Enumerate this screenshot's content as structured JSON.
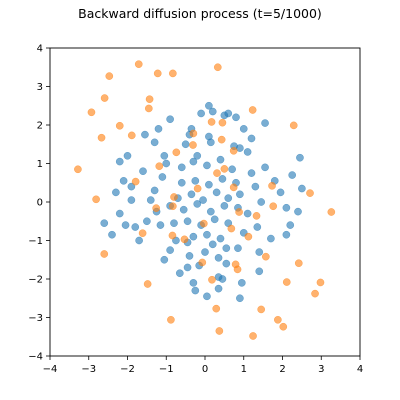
{
  "chart_data": {
    "type": "scatter",
    "title": "Backward diffusion process (t=5/1000)",
    "xlabel": "",
    "ylabel": "",
    "xlim": [
      -4,
      4
    ],
    "ylim": [
      -4,
      4
    ],
    "xticks": [
      "−4",
      "−3",
      "−2",
      "−1",
      "0",
      "1",
      "2",
      "3",
      "4"
    ],
    "yticks": [
      "−4",
      "−3",
      "−2",
      "−1",
      "0",
      "1",
      "2",
      "3",
      "4"
    ],
    "grid": false,
    "legend": "none",
    "point_alpha": 0.6,
    "series": [
      {
        "color": "#1f77b4",
        "x": [
          -0.7,
          -0.35,
          -0.05,
          0.3,
          0.6,
          0.9,
          -0.9,
          -0.55,
          -0.2,
          0.15,
          0.5,
          0.85,
          -0.6,
          -0.25,
          0.1,
          0.45,
          0.8,
          -0.8,
          -0.45,
          -0.1,
          0.25,
          0.6,
          -0.3,
          0.05,
          0.4,
          -1.3,
          -1.1,
          -1.25,
          -1.15,
          -1.4,
          -1.0,
          1.3,
          1.1,
          1.2,
          1.45,
          1.0,
          1.35,
          -0.6,
          -0.3,
          0.05,
          0.4,
          0.7,
          -0.45,
          0.2,
          0.55,
          0.0,
          -0.2,
          -0.4,
          -0.75,
          0.75,
          0.35,
          -1.05,
          -0.5,
          0.1,
          1.1,
          0.55,
          -0.15,
          -0.9,
          0.85,
          -0.45,
          -1.6,
          -1.9,
          -2.2,
          -1.5,
          -1.7,
          -2.0,
          -1.8,
          1.55,
          1.8,
          2.1,
          1.7,
          1.95,
          2.2,
          -1.3,
          -0.4,
          0.15,
          0.9,
          1.4,
          -1.05,
          1.2,
          -0.65,
          0.35,
          1.0,
          1.4,
          -1.2,
          -0.35,
          0.45,
          0.95,
          1.55,
          -1.55,
          -0.9,
          -0.1,
          0.2,
          0.5,
          0.8,
          -0.25,
          0.35,
          0.9,
          -2.1,
          -2.3,
          -2.6,
          -1.9,
          -2.4,
          -2.2,
          2.5,
          2.4,
          2.25,
          2.1,
          2.45,
          -2.05,
          0.1,
          0.6,
          0.05,
          -0.3
        ],
        "y": [
          0.1,
          0.2,
          0.05,
          0.25,
          0.1,
          0.2,
          -0.1,
          -0.2,
          -0.05,
          -0.25,
          -0.1,
          -0.15,
          0.5,
          0.55,
          0.45,
          0.6,
          0.5,
          -0.55,
          -0.5,
          -0.6,
          -0.45,
          -0.55,
          -0.9,
          -0.85,
          -0.95,
          0.3,
          0.65,
          -0.25,
          -0.6,
          0.05,
          1.0,
          0.4,
          -0.3,
          0.75,
          0.0,
          -0.8,
          -0.65,
          0.9,
          1.05,
          0.95,
          1.1,
          0.85,
          -1.05,
          -1.1,
          -1.2,
          -1.3,
          1.2,
          -1.4,
          -1.0,
          1.45,
          -1.45,
          1.2,
          1.5,
          1.7,
          1.3,
          -1.6,
          -1.65,
          -1.25,
          -1.2,
          -1.7,
          0.8,
          0.4,
          -0.3,
          -0.5,
          -1.0,
          1.2,
          -0.65,
          0.9,
          0.55,
          -0.15,
          -0.95,
          0.25,
          -0.6,
          1.55,
          1.75,
          1.55,
          1.4,
          -1.3,
          -1.5,
          1.65,
          -1.85,
          -1.95,
          1.9,
          -1.8,
          1.9,
          1.9,
          -2.0,
          -2.1,
          2.05,
          1.75,
          2.15,
          2.3,
          2.35,
          2.25,
          2.2,
          -2.3,
          -2.25,
          -2.5,
          0.55,
          0.25,
          -0.55,
          0.05,
          -0.85,
          1.05,
          0.35,
          -0.25,
          0.7,
          -0.85,
          1.15,
          -0.6,
          2.5,
          2.3,
          -2.45,
          -2.1
        ]
      },
      {
        "color": "#ff7f0e",
        "x": [
          -0.31,
          0.43,
          0.74,
          0.5,
          -0.19,
          -0.83,
          -0.84,
          -0.07,
          0.79,
          1.12,
          0.74,
          -0.3,
          -1.45,
          -1.89,
          -1.26,
          0.18,
          1.45,
          2.11,
          1.76,
          0.45,
          -1.22,
          -2.47,
          -2.67,
          -1.61,
          0.29,
          2.02,
          2.98,
          2.71,
          1.23,
          -0.83,
          -2.59,
          -3.28,
          -2.6,
          -0.88,
          1.24,
          2.84,
          3.26,
          2.29,
          0.33,
          -1.71,
          -2.93,
          -2.81,
          -1.48,
          0.37,
          1.88,
          2.42,
          1.73,
          0.17,
          -1.43,
          -2.2,
          -1.79,
          -0.53,
          0.84,
          1.57,
          1.33,
          0.31,
          -0.74,
          -1.18,
          -0.8,
          -0.03,
          0.68,
          0.88
        ],
        "y": [
          1.48,
          1.62,
          1.33,
          0.86,
          0.35,
          -0.11,
          -0.87,
          -1.57,
          -1.62,
          -0.9,
          0.38,
          1.78,
          2.43,
          1.73,
          -0.16,
          -2.02,
          -2.79,
          -2.08,
          -0.11,
          2.06,
          3.34,
          3.27,
          1.67,
          -0.81,
          -2.77,
          -3.24,
          -2.09,
          0.23,
          2.39,
          3.34,
          2.7,
          0.85,
          -1.35,
          -3.06,
          -3.48,
          -2.38,
          -0.26,
          1.99,
          3.5,
          3.58,
          2.33,
          0.07,
          -2.13,
          -3.35,
          -3.06,
          -1.59,
          0.42,
          2.08,
          2.67,
          1.98,
          0.53,
          -0.97,
          -1.75,
          -1.42,
          -0.36,
          0.75,
          1.29,
          0.93,
          0.13,
          -0.56,
          -0.69,
          -0.26
        ]
      }
    ]
  }
}
